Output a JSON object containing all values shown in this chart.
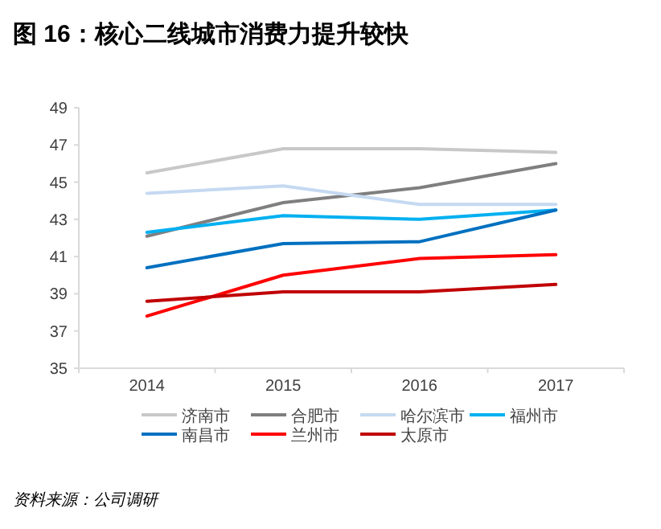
{
  "chart_data": {
    "type": "line",
    "title": "图 16：核心二线城市消费力提升较快",
    "categories": [
      "2014",
      "2015",
      "2016",
      "2017"
    ],
    "series": [
      {
        "name": "济南市",
        "color": "#c8c8c8",
        "values": [
          45.5,
          46.8,
          46.8,
          46.6
        ]
      },
      {
        "name": "合肥市",
        "color": "#7f7f7f",
        "values": [
          42.1,
          43.9,
          44.7,
          46.0
        ]
      },
      {
        "name": "哈尔滨市",
        "color": "#c5d9f1",
        "values": [
          44.4,
          44.8,
          43.8,
          43.8
        ]
      },
      {
        "name": "福州市",
        "color": "#00b0f0",
        "values": [
          42.3,
          43.2,
          43.0,
          43.5
        ]
      },
      {
        "name": "南昌市",
        "color": "#0070c0",
        "values": [
          40.4,
          41.7,
          41.8,
          43.5
        ]
      },
      {
        "name": "兰州市",
        "color": "#ff0000",
        "values": [
          37.8,
          40.0,
          40.9,
          41.1
        ]
      },
      {
        "name": "太原市",
        "color": "#c00000",
        "values": [
          38.6,
          39.1,
          39.1,
          39.5
        ]
      }
    ],
    "ylim": [
      35,
      49
    ],
    "yticks": [
      35,
      37,
      39,
      41,
      43,
      45,
      47,
      49
    ],
    "grid": false,
    "legend": "bottom",
    "marker": "none",
    "line_style": "solid",
    "annotations": [
      "资料来源：公司调研"
    ]
  }
}
